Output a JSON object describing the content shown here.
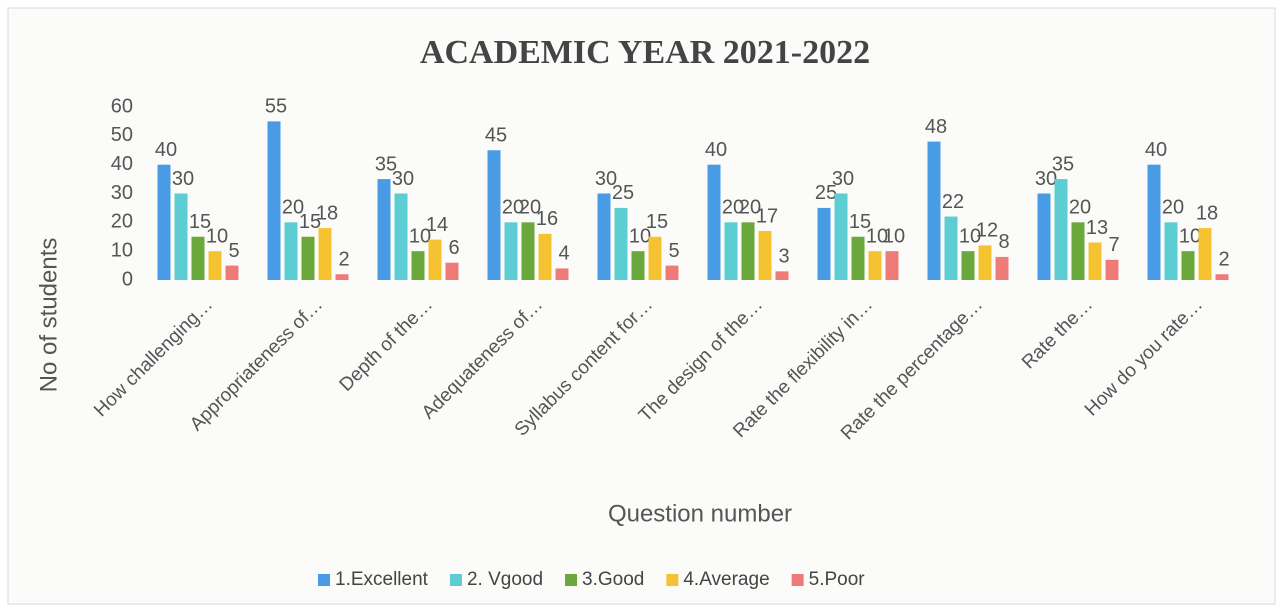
{
  "chart_data": {
    "type": "bar",
    "title": "ACADEMIC YEAR 2021-2022",
    "x_label": "Question number",
    "y_label": "No of students",
    "categories": [
      "How challenging…",
      "Appropriateness of…",
      "Depth of the…",
      "Adequateness of…",
      "Syllabus content for…",
      "The design of the…",
      "Rate the flexibility in…",
      "Rate the percentage…",
      "Rate the…",
      "How do you rate…"
    ],
    "series": [
      {
        "name": "1.Excellent",
        "color": "#4a9be6",
        "values": [
          40,
          55,
          35,
          45,
          30,
          40,
          25,
          48,
          30,
          40
        ]
      },
      {
        "name": "2. Vgood",
        "color": "#5ccdd2",
        "values": [
          30,
          20,
          30,
          20,
          25,
          20,
          30,
          22,
          35,
          20
        ]
      },
      {
        "name": "3.Good",
        "color": "#6aa83c",
        "values": [
          15,
          15,
          10,
          20,
          10,
          20,
          15,
          10,
          20,
          10
        ]
      },
      {
        "name": "4.Average",
        "color": "#f5c332",
        "values": [
          10,
          18,
          14,
          16,
          15,
          17,
          10,
          12,
          13,
          18
        ]
      },
      {
        "name": "5.Poor",
        "color": "#ef7b78",
        "values": [
          5,
          2,
          6,
          4,
          5,
          3,
          10,
          8,
          7,
          2
        ]
      }
    ],
    "ylim": [
      0,
      60
    ],
    "yticks": [
      0,
      10,
      20,
      30,
      40,
      50,
      60
    ],
    "grid": false,
    "legend": "bottom",
    "data_labels": true
  }
}
